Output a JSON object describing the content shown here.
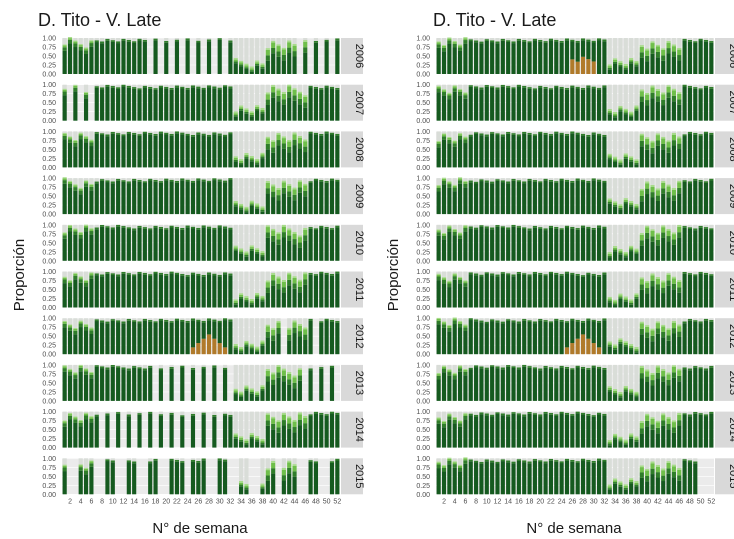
{
  "colors": {
    "dark": "#155a1f",
    "mid": "#2f7d2a",
    "light": "#6fbf4a",
    "pale": "#a7dc8a",
    "brown": "#b07a2a",
    "empty": "#d9ddd8",
    "panel_bg": "#ebebeb",
    "grid": "#ffffff",
    "strip_bg": "#d9d9d9"
  },
  "chart_data": [
    {
      "type": "bar",
      "stacked": true,
      "title": "D. Tito - V. Late",
      "xlabel": "N° de semana",
      "ylabel": "Proporción",
      "x_ticks": [
        2,
        4,
        6,
        8,
        10,
        12,
        14,
        16,
        18,
        20,
        22,
        24,
        26,
        28,
        30,
        32,
        34,
        36,
        38,
        40,
        42,
        44,
        46,
        48,
        50,
        52
      ],
      "y_ticks": [
        "0.00",
        "0.25",
        "0.50",
        "0.75",
        "1.00"
      ],
      "ylim": [
        0,
        1
      ],
      "x": "weeks 1-52",
      "facets": [
        "2006",
        "2007",
        "2008",
        "2009",
        "2010",
        "2011",
        "2012",
        "2013",
        "2014",
        "2015"
      ]
    },
    {
      "type": "bar",
      "stacked": true,
      "title": "D. Tito - V. Late",
      "xlabel": "N° de semana",
      "ylabel": "Proporción",
      "x_ticks": [
        2,
        4,
        6,
        8,
        10,
        12,
        14,
        16,
        18,
        20,
        22,
        24,
        26,
        28,
        30,
        32,
        34,
        36,
        38,
        40,
        42,
        44,
        46,
        48,
        50,
        52
      ],
      "y_ticks": [
        "0.00",
        "0.25",
        "0.50",
        "0.75",
        "1.00"
      ],
      "ylim": [
        0,
        1
      ],
      "x": "weeks 1-52",
      "facets": [
        "2006",
        "2007",
        "2008",
        "2009",
        "2010",
        "2011",
        "2012",
        "2013",
        "2014",
        "2015"
      ]
    }
  ]
}
